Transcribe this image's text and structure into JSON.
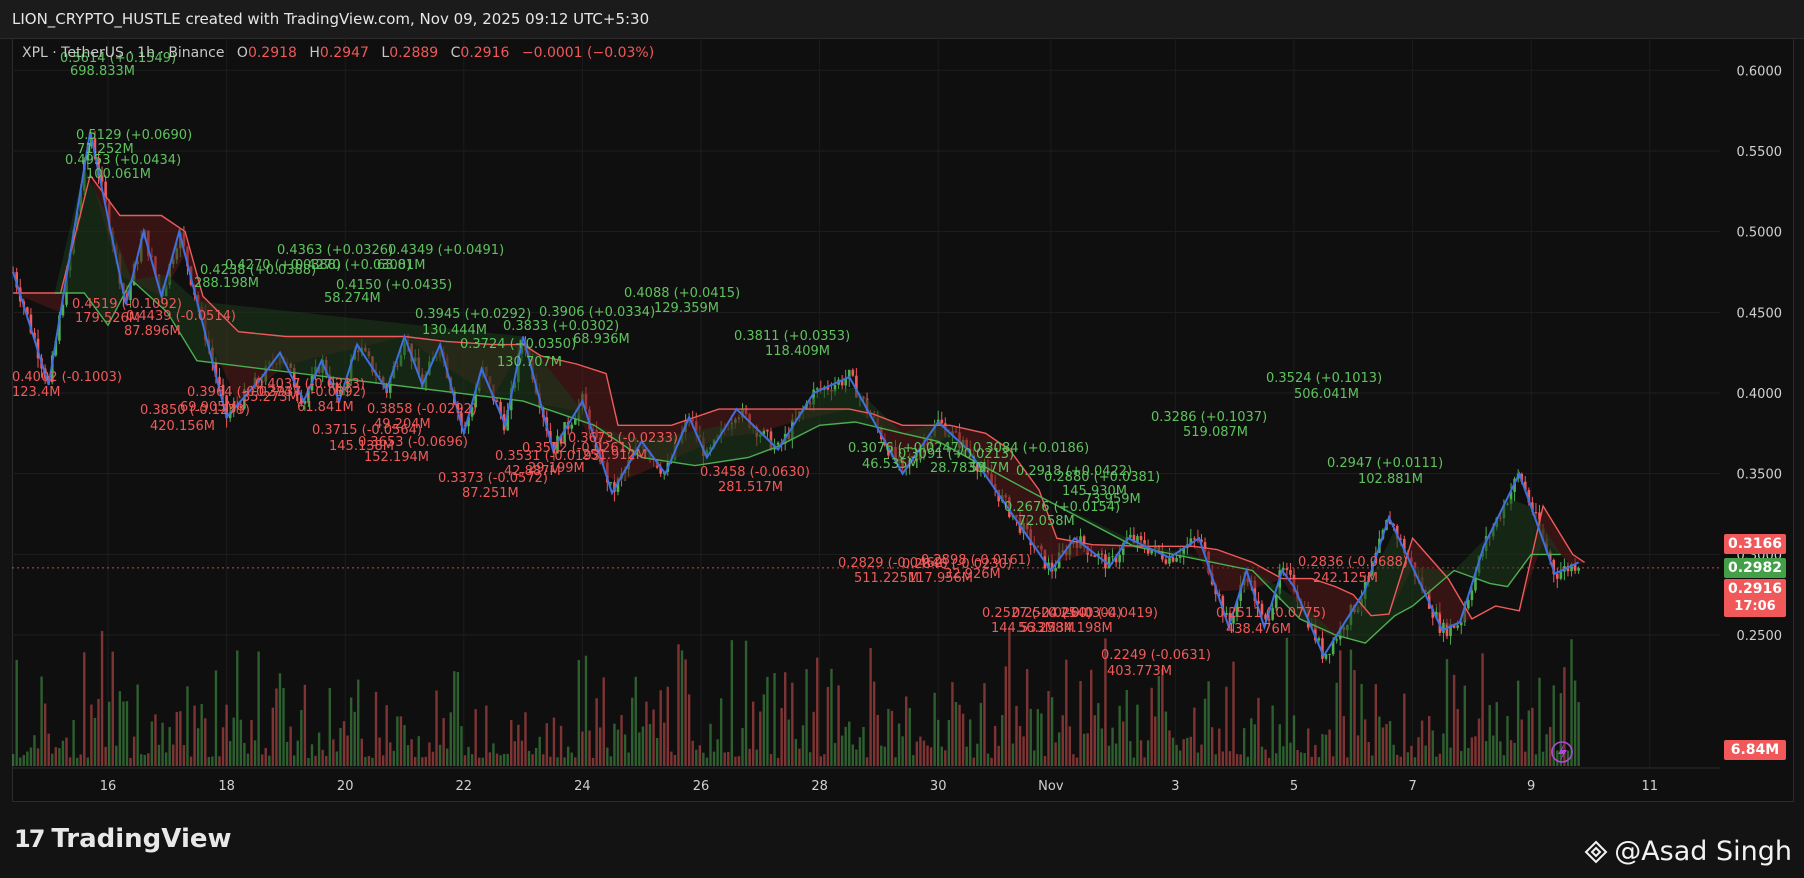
{
  "header": {
    "title": "LION_CRYPTO_HUSTLE created with TradingView.com, Nov 09, 2025 09:12 UTC+5:30"
  },
  "symbol_bar": {
    "symbol": "XPL · TetherUS · 1h · Binance",
    "o_label": "O",
    "o_value": "0.2918",
    "h_label": "H",
    "h_value": "0.2947",
    "l_label": "L",
    "l_value": "0.2889",
    "c_label": "C",
    "c_value": "0.2916",
    "change": "−0.0001 (−0.03%)"
  },
  "price_badges": {
    "upper": "0.3166",
    "middle": "0.2982",
    "last": "0.2916",
    "countdown": "17:06",
    "volume": "6.84M"
  },
  "colors": {
    "up": "#4caf50",
    "down": "#f05a5a",
    "zigzag": "#3f6fe0",
    "cloud_down": "#5a1a1a",
    "cloud_up": "#1c3a1c",
    "bg": "#0f0f0f",
    "axis_text": "#d0d0d0"
  },
  "brand": {
    "name": "TradingView",
    "logo": "17"
  },
  "watermark": {
    "text": "@Asad Singh",
    "icon": "binance-diamond-icon"
  },
  "chart_data": {
    "type": "line",
    "title": "",
    "ylim": [
      0.18,
      0.62
    ],
    "y_ticks": [
      "0.6000",
      "0.5500",
      "0.5000",
      "0.4500",
      "0.4000",
      "0.3500",
      "0.3000",
      "0.2500"
    ],
    "x_ticks": [
      "16",
      "18",
      "20",
      "22",
      "24",
      "26",
      "28",
      "30",
      "Nov",
      "3",
      "5",
      "7",
      "9",
      "11"
    ],
    "grid": true,
    "legend": "none",
    "last_price_line": 0.2916,
    "series": [
      {
        "type": "zigzag",
        "points": [
          [
            -1.6,
            0.475
          ],
          [
            -1.0,
            0.405
          ],
          [
            -0.3,
            0.562
          ],
          [
            0.3,
            0.455
          ],
          [
            0.6,
            0.5
          ],
          [
            0.9,
            0.46
          ],
          [
            1.2,
            0.5
          ],
          [
            2.0,
            0.385
          ],
          [
            2.6,
            0.41
          ],
          [
            2.9,
            0.425
          ],
          [
            3.3,
            0.395
          ],
          [
            3.6,
            0.42
          ],
          [
            3.9,
            0.395
          ],
          [
            4.2,
            0.43
          ],
          [
            4.7,
            0.402
          ],
          [
            5.0,
            0.435
          ],
          [
            5.3,
            0.405
          ],
          [
            5.6,
            0.43
          ],
          [
            6.0,
            0.375
          ],
          [
            6.3,
            0.415
          ],
          [
            6.7,
            0.38
          ],
          [
            7.0,
            0.435
          ],
          [
            7.5,
            0.365
          ],
          [
            8.0,
            0.395
          ],
          [
            8.5,
            0.338
          ],
          [
            9.0,
            0.37
          ],
          [
            9.4,
            0.35
          ],
          [
            9.8,
            0.385
          ],
          [
            10.1,
            0.36
          ],
          [
            10.6,
            0.39
          ],
          [
            11.3,
            0.365
          ],
          [
            11.9,
            0.4
          ],
          [
            12.5,
            0.41
          ],
          [
            13.4,
            0.35
          ],
          [
            14.0,
            0.382
          ],
          [
            14.5,
            0.365
          ],
          [
            15.9,
            0.29
          ],
          [
            16.3,
            0.31
          ],
          [
            16.9,
            0.293
          ],
          [
            17.2,
            0.31
          ],
          [
            17.9,
            0.298
          ],
          [
            18.4,
            0.31
          ],
          [
            18.9,
            0.255
          ],
          [
            19.2,
            0.29
          ],
          [
            19.5,
            0.255
          ],
          [
            19.8,
            0.29
          ],
          [
            20.0,
            0.28
          ],
          [
            20.5,
            0.237
          ],
          [
            21.2,
            0.278
          ],
          [
            21.6,
            0.323
          ],
          [
            22.5,
            0.253
          ],
          [
            22.8,
            0.258
          ],
          [
            23.2,
            0.305
          ],
          [
            23.8,
            0.35
          ],
          [
            24.4,
            0.288
          ],
          [
            24.8,
            0.295
          ]
        ]
      },
      {
        "type": "supertrend-resistance",
        "points": [
          [
            -1.6,
            0.462
          ],
          [
            -0.8,
            0.462
          ],
          [
            -0.3,
            0.535
          ],
          [
            0.2,
            0.51
          ],
          [
            0.9,
            0.51
          ],
          [
            1.3,
            0.5
          ],
          [
            1.6,
            0.46
          ],
          [
            2.2,
            0.438
          ],
          [
            3.0,
            0.435
          ],
          [
            5.0,
            0.435
          ],
          [
            5.7,
            0.432
          ],
          [
            6.5,
            0.43
          ],
          [
            7.0,
            0.43
          ],
          [
            7.3,
            0.423
          ],
          [
            7.9,
            0.418
          ],
          [
            8.4,
            0.412
          ],
          [
            8.6,
            0.38
          ],
          [
            9.5,
            0.38
          ],
          [
            10.3,
            0.39
          ],
          [
            11.0,
            0.39
          ],
          [
            11.6,
            0.39
          ],
          [
            12.5,
            0.39
          ],
          [
            12.9,
            0.387
          ],
          [
            13.4,
            0.38
          ],
          [
            14.2,
            0.38
          ],
          [
            14.8,
            0.375
          ],
          [
            15.2,
            0.365
          ],
          [
            15.7,
            0.34
          ],
          [
            16.0,
            0.31
          ],
          [
            16.6,
            0.306
          ],
          [
            17.5,
            0.305
          ],
          [
            18.3,
            0.305
          ],
          [
            18.7,
            0.303
          ],
          [
            19.3,
            0.295
          ],
          [
            19.8,
            0.285
          ],
          [
            20.3,
            0.285
          ],
          [
            20.7,
            0.28
          ],
          [
            21.0,
            0.275
          ],
          [
            21.3,
            0.262
          ],
          [
            21.6,
            0.263
          ],
          [
            22.0,
            0.31
          ],
          [
            22.6,
            0.285
          ],
          [
            23.0,
            0.26
          ],
          [
            23.4,
            0.268
          ],
          [
            23.8,
            0.265
          ],
          [
            24.2,
            0.33
          ],
          [
            24.7,
            0.3
          ],
          [
            24.9,
            0.295
          ]
        ]
      },
      {
        "type": "supertrend-support",
        "points": [
          [
            -0.9,
            0.462
          ],
          [
            -0.4,
            0.462
          ],
          [
            0.0,
            0.442
          ],
          [
            0.4,
            0.47
          ],
          [
            1.0,
            0.45
          ],
          [
            1.5,
            0.42
          ],
          [
            7.0,
            0.395
          ],
          [
            8.2,
            0.38
          ],
          [
            9.0,
            0.36
          ],
          [
            9.9,
            0.355
          ],
          [
            10.8,
            0.36
          ],
          [
            11.3,
            0.367
          ],
          [
            12.0,
            0.38
          ],
          [
            12.6,
            0.382
          ],
          [
            13.4,
            0.375
          ],
          [
            14.0,
            0.37
          ],
          [
            15.0,
            0.35
          ],
          [
            15.5,
            0.34
          ],
          [
            17.3,
            0.305
          ],
          [
            19.3,
            0.29
          ],
          [
            20.1,
            0.26
          ],
          [
            20.7,
            0.25
          ],
          [
            21.2,
            0.245
          ],
          [
            21.7,
            0.262
          ],
          [
            22.0,
            0.268
          ],
          [
            22.7,
            0.29
          ],
          [
            23.3,
            0.282
          ],
          [
            23.6,
            0.28
          ],
          [
            24.0,
            0.3
          ],
          [
            24.5,
            0.3
          ]
        ]
      }
    ],
    "annotations": [
      {
        "text": "0.5614 (+0.1549)",
        "color": "green"
      },
      {
        "text": "698.833M",
        "color": "green"
      },
      {
        "text": "0.5129 (+0.0690)",
        "color": "green"
      },
      {
        "text": "71.252M",
        "color": "green"
      },
      {
        "text": "0.4953 (+0.0434)",
        "color": "green"
      },
      {
        "text": "100.061M",
        "color": "green"
      },
      {
        "text": "0.4363 (+0.0326)",
        "color": "green"
      },
      {
        "text": "0.4270 (+0.0388)",
        "color": "green"
      },
      {
        "text": "0.4270 (+0.0308)",
        "color": "green"
      },
      {
        "text": "0.4349 (+0.0491)",
        "color": "green"
      },
      {
        "text": "0.4238 (+0.0388)",
        "color": "green"
      },
      {
        "text": "288.198M",
        "color": "green"
      },
      {
        "text": "63.01M",
        "color": "green"
      },
      {
        "text": "0.4150 (+0.0435)",
        "color": "green"
      },
      {
        "text": "58.274M",
        "color": "green"
      },
      {
        "text": "0.3945 (+0.0292)",
        "color": "green"
      },
      {
        "text": "130.444M",
        "color": "green"
      },
      {
        "text": "0.3906 (+0.0334)",
        "color": "green"
      },
      {
        "text": "0.3833 (+0.0302)",
        "color": "green"
      },
      {
        "text": "68.936M",
        "color": "green"
      },
      {
        "text": "0.3724 (+0.0350)",
        "color": "green"
      },
      {
        "text": "130.707M",
        "color": "green"
      },
      {
        "text": "0.4088 (+0.0415)",
        "color": "green"
      },
      {
        "text": "129.359M",
        "color": "green"
      },
      {
        "text": "0.3811 (+0.0353)",
        "color": "green"
      },
      {
        "text": "118.409M",
        "color": "green"
      },
      {
        "text": "0.3076 (+0.0247)",
        "color": "green"
      },
      {
        "text": "0.3084 (+0.0186)",
        "color": "green"
      },
      {
        "text": "0.3091 (+0.0213)",
        "color": "green"
      },
      {
        "text": "46.535M",
        "color": "green"
      },
      {
        "text": "28.783M",
        "color": "green"
      },
      {
        "text": "53.7M",
        "color": "green"
      },
      {
        "text": "0.3286 (+0.1037)",
        "color": "green"
      },
      {
        "text": "519.087M",
        "color": "green"
      },
      {
        "text": "0.3524 (+0.1013)",
        "color": "green"
      },
      {
        "text": "506.041M",
        "color": "green"
      },
      {
        "text": "0.2918 (+0.0422)",
        "color": "green"
      },
      {
        "text": "0.2880 (+0.0381)",
        "color": "green"
      },
      {
        "text": "145.930M",
        "color": "green"
      },
      {
        "text": "73.959M",
        "color": "green"
      },
      {
        "text": "0.2947 (+0.0111)",
        "color": "green"
      },
      {
        "text": "102.881M",
        "color": "green"
      },
      {
        "text": "0.2676 (+0.0154)",
        "color": "green"
      },
      {
        "text": "72.058M",
        "color": "green"
      },
      {
        "text": "0.4519 (-0.1092)",
        "color": "red"
      },
      {
        "text": "179.526M",
        "color": "red"
      },
      {
        "text": "0.4439 (-0.0514)",
        "color": "red"
      },
      {
        "text": "87.896M",
        "color": "red"
      },
      {
        "text": "0.4002 (-0.1003)",
        "color": "red"
      },
      {
        "text": "123.4M",
        "color": "red"
      },
      {
        "text": "0.3850 (-0.1279)",
        "color": "red"
      },
      {
        "text": "420.156M",
        "color": "red"
      },
      {
        "text": "0.3964 (-0.0274)",
        "color": "red"
      },
      {
        "text": "69.905M",
        "color": "red"
      },
      {
        "text": "0.4037 (-0.0233)",
        "color": "red"
      },
      {
        "text": "0.3937 (-0.0392)",
        "color": "red"
      },
      {
        "text": "35.273M",
        "color": "red"
      },
      {
        "text": "61.841M",
        "color": "red"
      },
      {
        "text": "0.3858 (-0.0292)",
        "color": "red"
      },
      {
        "text": "49.204M",
        "color": "red"
      },
      {
        "text": "0.3715 (-0.0564)",
        "color": "red"
      },
      {
        "text": "145.138M",
        "color": "red"
      },
      {
        "text": "0.3653 (-0.0696)",
        "color": "red"
      },
      {
        "text": "152.194M",
        "color": "red"
      },
      {
        "text": "0.3673 (-0.0233)",
        "color": "red"
      },
      {
        "text": "0.3572 (-0.0261)",
        "color": "red"
      },
      {
        "text": "0.3531 (-0.0193)",
        "color": "red"
      },
      {
        "text": "42.887M",
        "color": "red"
      },
      {
        "text": "29.199M",
        "color": "red"
      },
      {
        "text": "251.912M",
        "color": "red"
      },
      {
        "text": "0.3373 (-0.0572)",
        "color": "red"
      },
      {
        "text": "87.251M",
        "color": "red"
      },
      {
        "text": "0.3458 (-0.0630)",
        "color": "red"
      },
      {
        "text": "281.517M",
        "color": "red"
      },
      {
        "text": "0.2829 (-0.0462)",
        "color": "red"
      },
      {
        "text": "511.225M",
        "color": "red"
      },
      {
        "text": "0.2898 (-0.0161)",
        "color": "red"
      },
      {
        "text": "0.2846 (-0.0230)",
        "color": "red"
      },
      {
        "text": "117.956M",
        "color": "red"
      },
      {
        "text": "32.926M",
        "color": "red"
      },
      {
        "text": "0.2527 (-0.0260)",
        "color": "red"
      },
      {
        "text": "0.2524 (-0.0304)",
        "color": "red"
      },
      {
        "text": "0.2540 (-0.0419)",
        "color": "red"
      },
      {
        "text": "144.533M",
        "color": "red"
      },
      {
        "text": "56.258M",
        "color": "red"
      },
      {
        "text": "34.198M",
        "color": "red"
      },
      {
        "text": "0.2249 (-0.0631)",
        "color": "red"
      },
      {
        "text": "403.773M",
        "color": "red"
      },
      {
        "text": "0.2511 (-0.0775)",
        "color": "red"
      },
      {
        "text": "438.476M",
        "color": "red"
      },
      {
        "text": "0.2836 (-0.0688)",
        "color": "red"
      },
      {
        "text": "242.125M",
        "color": "red"
      }
    ]
  }
}
